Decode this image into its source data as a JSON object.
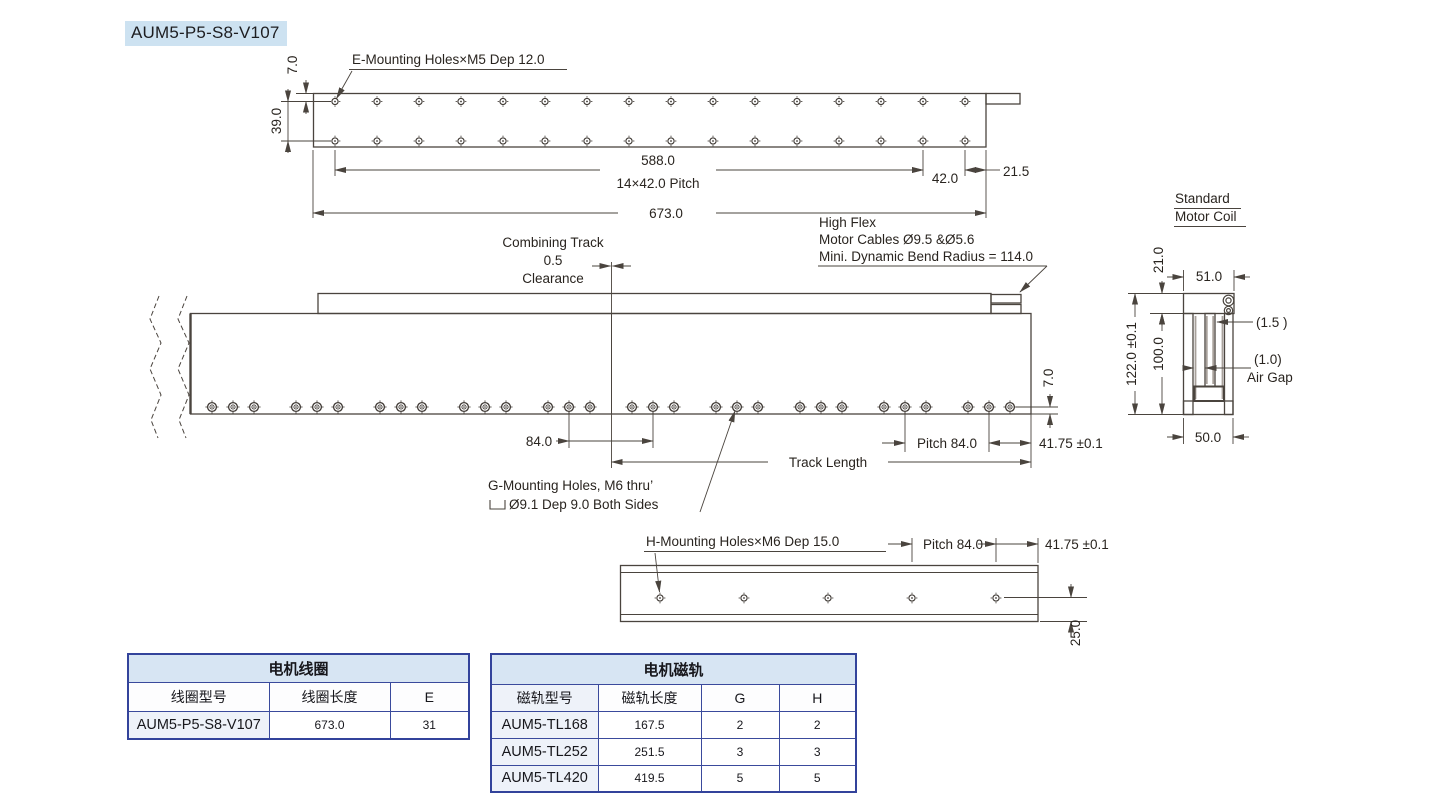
{
  "title": "AUM5-P5-S8-V107",
  "top_view": {
    "label_e_mounting": "E-Mounting Holes×M5 Dep 12.0",
    "dim_7": "7.0",
    "dim_39": "39.0",
    "dim_588": "588.0",
    "dim_pitch": "14×42.0 Pitch",
    "dim_42": "42.0",
    "dim_21_5": "21.5",
    "dim_673": "673.0"
  },
  "side_view": {
    "combining_line1": "Combining Track",
    "combining_line2": "0.5",
    "combining_line3": "Clearance",
    "high_flex_line1": "High Flex",
    "high_flex_line2": "Motor Cables Ø9.5 &Ø5.6",
    "high_flex_line3": "Mini. Dynamic Bend Radius = 114.0",
    "dim_84": "84.0",
    "dim_7": "7.0",
    "dim_pitch_84": "Pitch 84.0",
    "dim_41_75": "41.75 ±0.1",
    "dim_track_length": "Track Length",
    "g_mounting_line1": "G-Mounting Holes, M6 thru’",
    "g_mounting_line2": "Ø9.1 Dep 9.0 Both Sides"
  },
  "cross_section": {
    "title_line1": "Standard",
    "title_line2": "Motor Coil",
    "dim_21": "21.0",
    "dim_51": "51.0",
    "dim_122": "122.0 ±0.1",
    "dim_100": "100.0",
    "dim_1_5": "(1.5 )",
    "dim_1_0": "(1.0)",
    "air_gap": "Air Gap",
    "dim_50": "50.0"
  },
  "bottom_view": {
    "label_h_mounting": "H-Mounting Holes×M6 Dep 15.0",
    "dim_pitch_84": "Pitch 84.0",
    "dim_41_75": "41.75 ±0.1",
    "dim_25": "25.0"
  },
  "coil_table": {
    "title": "电机线圈",
    "headers": [
      "线圈型号",
      "线圈长度",
      "E"
    ],
    "rows": [
      [
        "AUM5-P5-S8-V107",
        "673.0",
        "31"
      ]
    ]
  },
  "track_table": {
    "title": "电机磁轨",
    "headers": [
      "磁轨型号",
      "磁轨长度",
      "G",
      "H"
    ],
    "rows": [
      [
        "AUM5-TL168",
        "167.5",
        "2",
        "2"
      ],
      [
        "AUM5-TL252",
        "251.5",
        "3",
        "3"
      ],
      [
        "AUM5-TL420",
        "419.5",
        "5",
        "5"
      ]
    ]
  },
  "colors": {
    "highlight": "#cde2f1",
    "drawing_line": "#4a443e",
    "table_border": "#33439b",
    "table_header_bg": "#d7e5f3",
    "table_model_bg": "#eef2f9"
  }
}
